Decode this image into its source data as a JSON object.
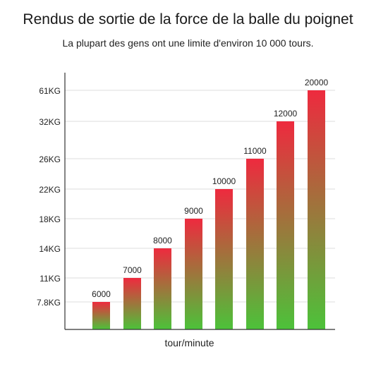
{
  "chart_data": {
    "type": "bar",
    "title": "Rendus de sortie de la force de la balle du poignet",
    "subtitle": "La plupart des gens ont une limite d'environ 10 000 tours.",
    "xlabel": "tour/minute",
    "ylabel": "",
    "y_tick_labels": [
      "7.8KG",
      "11KG",
      "14KG",
      "18KG",
      "22KG",
      "26KG",
      "32KG",
      "61KG"
    ],
    "categories": [
      "6000",
      "7000",
      "8000",
      "9000",
      "10000",
      "11000",
      "12000",
      "20000"
    ],
    "values": [
      "7.8KG",
      "11KG",
      "14KG",
      "18KG",
      "22KG",
      "26KG",
      "32KG",
      "61KG"
    ],
    "data_labels": [
      "6000",
      "7000",
      "8000",
      "9000",
      "10000",
      "11000",
      "12000",
      "20000"
    ],
    "grid": true,
    "legend": "none",
    "colors": {
      "bar_top": "#ee2a3e",
      "bar_bottom": "#4cc23a",
      "grid": "#dddddd",
      "axis": "#333333"
    }
  }
}
